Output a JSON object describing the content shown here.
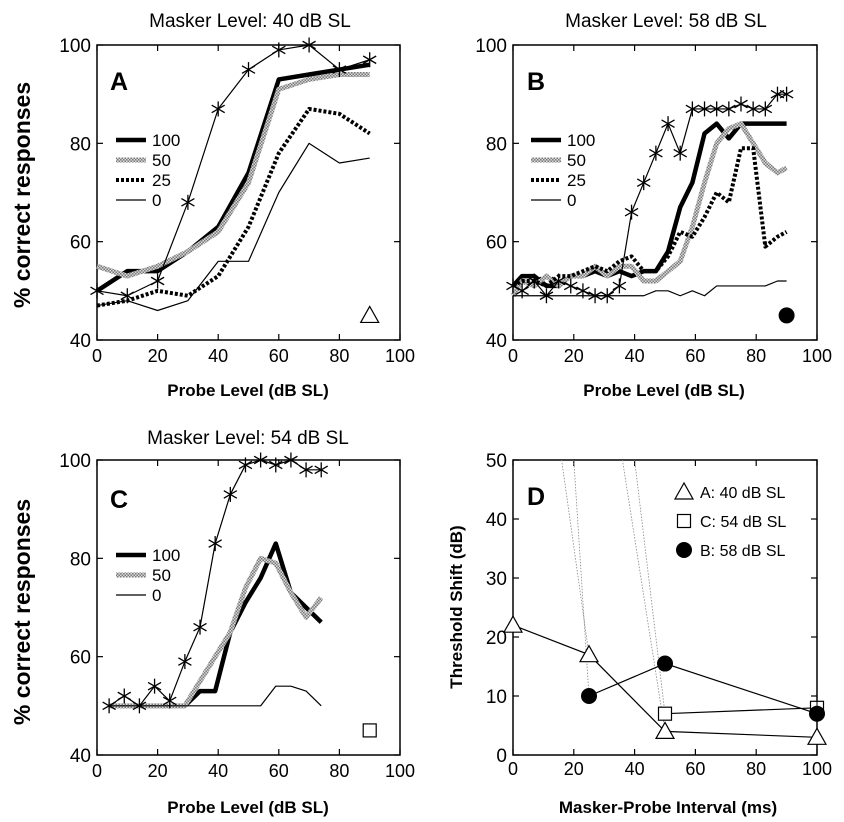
{
  "panels": {
    "A": {
      "title": "Masker Level: 40 dB SL",
      "letter": "A",
      "ylabel": "% correct responses",
      "xlabel": "Probe Level (dB SL)"
    },
    "B": {
      "title": "Masker Level: 58 dB SL",
      "letter": "B",
      "ylabel": "",
      "xlabel": "Probe Level (dB SL)"
    },
    "C": {
      "title": "Masker Level: 54 dB SL",
      "letter": "C",
      "ylabel": "% correct responses",
      "xlabel": "Probe Level (dB SL)"
    },
    "D": {
      "title": "",
      "letter": "D",
      "ylabel": "Threshold Shift (dB)",
      "xlabel": "Masker-Probe Interval (ms)"
    }
  },
  "chart_data": [
    {
      "id": "A",
      "type": "line",
      "xlim": [
        0,
        100
      ],
      "ylim": [
        40,
        100
      ],
      "xticks": [
        0,
        20,
        40,
        60,
        80,
        100
      ],
      "yticks": [
        40,
        60,
        80,
        100
      ],
      "legend": [
        "100",
        "50",
        "25",
        "0"
      ],
      "series": [
        {
          "name": "100",
          "style": "thick",
          "x": [
            0,
            10,
            20,
            30,
            40,
            50,
            60,
            70,
            80,
            90
          ],
          "y": [
            50,
            54,
            54,
            58,
            63,
            74,
            93,
            94,
            95,
            96
          ]
        },
        {
          "name": "50",
          "style": "hatched",
          "x": [
            0,
            10,
            20,
            30,
            40,
            50,
            60,
            70,
            80,
            90
          ],
          "y": [
            55,
            53,
            55,
            58,
            62,
            72,
            91,
            93,
            94,
            94
          ]
        },
        {
          "name": "25",
          "style": "dotted",
          "x": [
            0,
            10,
            20,
            30,
            40,
            50,
            60,
            70,
            80,
            90
          ],
          "y": [
            47,
            48,
            50,
            49,
            53,
            63,
            78,
            87,
            86,
            82
          ]
        },
        {
          "name": "0",
          "style": "thin",
          "x": [
            0,
            10,
            20,
            30,
            40,
            50,
            60,
            70,
            80,
            90
          ],
          "y": [
            47,
            48,
            46,
            48,
            56,
            56,
            70,
            80,
            76,
            77
          ]
        },
        {
          "name": "",
          "style": "star",
          "x": [
            0,
            10,
            20,
            30,
            40,
            50,
            60,
            70,
            80,
            90
          ],
          "y": [
            50,
            49,
            52,
            68,
            87,
            95,
            99,
            100,
            95,
            97
          ]
        }
      ],
      "marker": {
        "shape": "triangle",
        "x": 90,
        "y": 45
      }
    },
    {
      "id": "B",
      "type": "line",
      "xlim": [
        0,
        100
      ],
      "ylim": [
        40,
        100
      ],
      "xticks": [
        0,
        20,
        40,
        60,
        80,
        100
      ],
      "yticks": [
        40,
        60,
        80,
        100
      ],
      "legend": [
        "100",
        "50",
        "25",
        "0"
      ],
      "series": [
        {
          "name": "100",
          "style": "thick",
          "x": [
            0,
            3,
            7,
            11,
            15,
            19,
            23,
            27,
            31,
            35,
            39,
            43,
            47,
            51,
            55,
            59,
            63,
            67,
            71,
            75,
            79,
            83,
            87,
            90
          ],
          "y": [
            51,
            53,
            53,
            51,
            51,
            53,
            53,
            54,
            53,
            54,
            53,
            54,
            54,
            58,
            67,
            72,
            82,
            84,
            81,
            84,
            84,
            84,
            84,
            84
          ]
        },
        {
          "name": "50",
          "style": "hatched",
          "x": [
            0,
            3,
            7,
            11,
            15,
            19,
            23,
            27,
            31,
            35,
            39,
            43,
            47,
            51,
            55,
            59,
            63,
            67,
            71,
            75,
            79,
            83,
            87,
            90
          ],
          "y": [
            49,
            52,
            51,
            53,
            51,
            53,
            53,
            55,
            53,
            55,
            55,
            52,
            52,
            54,
            56,
            63,
            72,
            80,
            83,
            84,
            80,
            76,
            74,
            75
          ]
        },
        {
          "name": "25",
          "style": "dotted",
          "x": [
            0,
            3,
            7,
            11,
            15,
            19,
            23,
            27,
            31,
            35,
            39,
            43,
            47,
            51,
            55,
            59,
            63,
            67,
            71,
            75,
            79,
            83,
            87,
            90
          ],
          "y": [
            51,
            52,
            52,
            51,
            53,
            53,
            54,
            55,
            54,
            56,
            57,
            54,
            54,
            57,
            62,
            61,
            65,
            70,
            68,
            79,
            79,
            59,
            61,
            62
          ]
        },
        {
          "name": "0",
          "style": "thin",
          "x": [
            0,
            3,
            7,
            11,
            15,
            19,
            23,
            27,
            31,
            35,
            39,
            43,
            47,
            51,
            55,
            59,
            63,
            67,
            71,
            75,
            79,
            83,
            87,
            90
          ],
          "y": [
            49,
            49,
            49,
            49,
            49,
            49,
            49,
            49,
            49,
            49,
            49,
            49,
            50,
            50,
            49,
            50,
            49,
            51,
            51,
            51,
            51,
            51,
            52,
            52
          ]
        },
        {
          "name": "",
          "style": "star",
          "x": [
            0,
            3,
            7,
            11,
            15,
            19,
            23,
            27,
            31,
            35,
            39,
            43,
            47,
            51,
            55,
            59,
            63,
            67,
            71,
            75,
            79,
            83,
            87,
            90
          ],
          "y": [
            51,
            50,
            52,
            49,
            52,
            51,
            50,
            49,
            49,
            51,
            66,
            72,
            78,
            84,
            78,
            87,
            87,
            87,
            87,
            88,
            87,
            87,
            90,
            90
          ]
        }
      ],
      "marker": {
        "shape": "filled-circle",
        "x": 90,
        "y": 45
      }
    },
    {
      "id": "C",
      "type": "line",
      "xlim": [
        0,
        100
      ],
      "ylim": [
        40,
        100
      ],
      "xticks": [
        0,
        20,
        40,
        60,
        80,
        100
      ],
      "yticks": [
        40,
        60,
        80,
        100
      ],
      "legend": [
        "100",
        "50",
        "0"
      ],
      "series": [
        {
          "name": "100",
          "style": "thick",
          "x": [
            4,
            9,
            14,
            19,
            24,
            29,
            34,
            39,
            44,
            49,
            54,
            59,
            64,
            69,
            74
          ],
          "y": [
            50,
            50,
            50,
            50,
            50,
            50,
            53,
            53,
            65,
            71,
            76,
            83,
            73,
            70,
            67
          ]
        },
        {
          "name": "50",
          "style": "hatched",
          "x": [
            4,
            9,
            14,
            19,
            24,
            29,
            34,
            39,
            44,
            49,
            54,
            59,
            64,
            69,
            74
          ],
          "y": [
            50,
            50,
            50,
            50,
            50,
            50,
            55,
            60,
            65,
            74,
            80,
            79,
            73,
            68,
            72
          ]
        },
        {
          "name": "0",
          "style": "thin",
          "x": [
            4,
            9,
            14,
            19,
            24,
            29,
            34,
            39,
            44,
            49,
            54,
            59,
            64,
            69,
            74
          ],
          "y": [
            50,
            50,
            50,
            50,
            50,
            50,
            50,
            50,
            50,
            50,
            50,
            54,
            54,
            53,
            50
          ]
        },
        {
          "name": "",
          "style": "star",
          "x": [
            4,
            9,
            14,
            19,
            24,
            29,
            34,
            39,
            44,
            49,
            54,
            59,
            64,
            69,
            74
          ],
          "y": [
            50,
            52,
            50,
            54,
            51,
            59,
            66,
            83,
            93,
            99,
            100,
            99,
            100,
            98,
            98
          ]
        }
      ],
      "marker": {
        "shape": "square",
        "x": 90,
        "y": 45
      }
    },
    {
      "id": "D",
      "type": "scatter",
      "xlim": [
        0,
        100
      ],
      "ylim": [
        0,
        50
      ],
      "xticks": [
        0,
        20,
        40,
        60,
        80,
        100
      ],
      "yticks": [
        0,
        10,
        20,
        30,
        40,
        50
      ],
      "legend": [
        "A: 40 dB SL",
        "C: 54 dB SL",
        "B: 58 dB SL"
      ],
      "series": [
        {
          "name": "A: 40 dB SL",
          "marker": "triangle",
          "x": [
            0,
            25,
            50,
            100
          ],
          "y": [
            22,
            17,
            4,
            3
          ]
        },
        {
          "name": "C: 54 dB SL",
          "marker": "square",
          "x": [
            50,
            100
          ],
          "y": [
            7,
            8
          ]
        },
        {
          "name": "B: 58 dB SL",
          "marker": "filled-circle",
          "x": [
            25,
            50,
            100
          ],
          "y": [
            10,
            15.5,
            7
          ]
        }
      ],
      "guides": [
        {
          "x": [
            16,
            25
          ],
          "y": [
            50,
            17
          ]
        },
        {
          "x": [
            20,
            25
          ],
          "y": [
            50,
            10
          ]
        },
        {
          "x": [
            36,
            50
          ],
          "y": [
            50,
            4
          ]
        },
        {
          "x": [
            40,
            50
          ],
          "y": [
            50,
            7
          ]
        }
      ]
    }
  ]
}
